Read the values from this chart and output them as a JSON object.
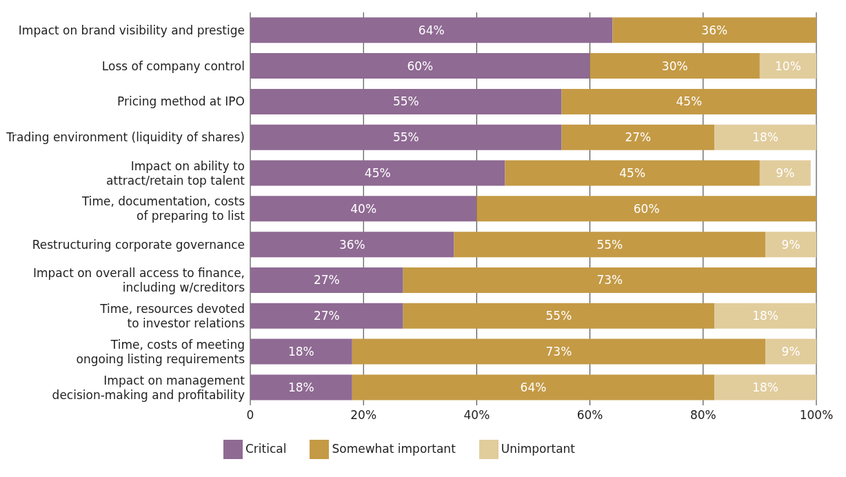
{
  "chart_data": {
    "type": "bar",
    "orientation": "horizontal",
    "stacked": true,
    "categories": [
      "Impact on brand visibility and prestige",
      "Loss of company control",
      "Pricing method at IPO",
      "Trading environment (liquidity of shares)",
      "Impact on ability to\nattract/retain top talent",
      "Time, documentation, costs\nof preparing to list",
      "Restructuring corporate governance",
      "Impact on overall access to finance,\nincluding w/creditors",
      "Time, resources devoted\nto investor relations",
      "Time, costs of meeting\nongoing listing requirements",
      "Impact on management\ndecision-making and profitability"
    ],
    "series": [
      {
        "name": "Critical",
        "color": "#8f6a93",
        "values": [
          64,
          60,
          55,
          55,
          45,
          40,
          36,
          27,
          27,
          18,
          18
        ],
        "value_labels": [
          "64%",
          "60%",
          "55%",
          "55%",
          "45%",
          "40%",
          "36%",
          "27%",
          "27%",
          "18%",
          "18%"
        ]
      },
      {
        "name": "Somewhat important",
        "color": "#c49a45",
        "values": [
          36,
          30,
          45,
          27,
          45,
          60,
          55,
          73,
          55,
          73,
          64
        ],
        "value_labels": [
          "36%",
          "30%",
          "45%",
          "27%",
          "45%",
          "60%",
          "55%",
          "73%",
          "55%",
          "73%",
          "64%"
        ]
      },
      {
        "name": "Unimportant",
        "color": "#e1cc9c",
        "values": [
          0,
          10,
          0,
          18,
          9,
          0,
          9,
          0,
          18,
          9,
          18
        ],
        "value_labels": [
          null,
          "10%",
          null,
          "18%",
          "9%",
          null,
          "9%",
          null,
          "18%",
          "9%",
          "18%"
        ]
      }
    ],
    "xlim": [
      0,
      100
    ],
    "xticks": [
      0,
      {
        "value": 20,
        "label": "20%"
      },
      {
        "value": 40,
        "label": "40%"
      },
      {
        "value": 60,
        "label": "60%"
      },
      {
        "value": 80,
        "label": "80%"
      },
      {
        "value": 100,
        "label": "100%"
      }
    ],
    "grid": "x",
    "legend": "bottom"
  }
}
